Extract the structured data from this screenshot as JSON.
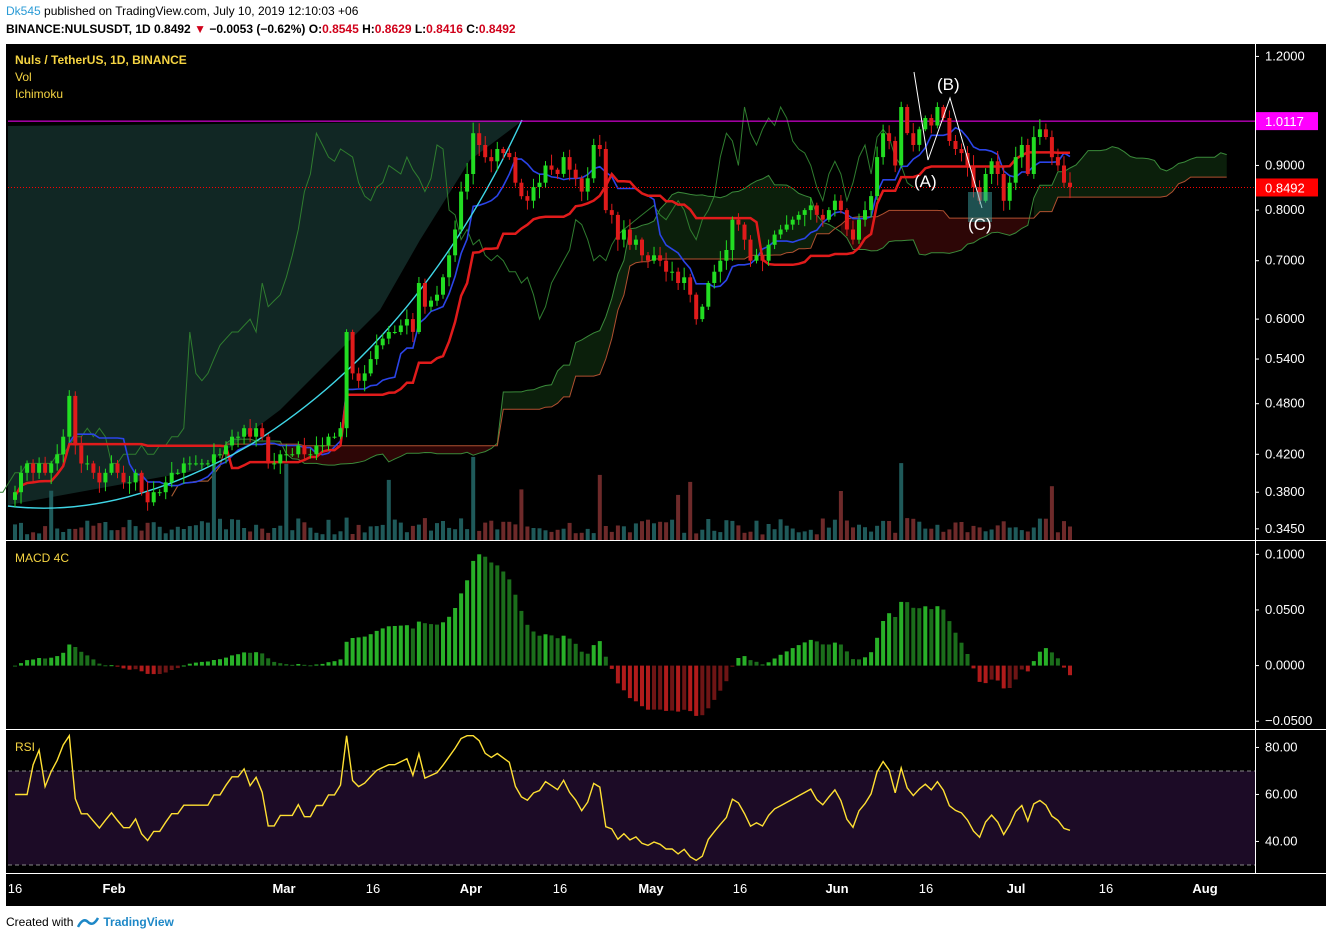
{
  "header": {
    "user": "Dk545",
    "published": "published on TradingView.com, July 10, 2019 12:10:03 +06",
    "symbol": "BINANCE:NULSUSDT, 1D",
    "last": "0.8492",
    "arrow": "▼",
    "change": "−0.0053 (−0.62%)",
    "o_label": "O:",
    "o": "0.8545",
    "h_label": "H:",
    "h": "0.8629",
    "l_label": "L:",
    "l": "0.8416",
    "c_label": "C:",
    "c": "0.8492"
  },
  "legend": {
    "title": "Nuls / TetherUS, 1D, BINANCE",
    "vol": "Vol",
    "ichimoku": "Ichimoku",
    "macd": "MACD 4C",
    "rsi": "RSI"
  },
  "annotations": {
    "a": "(A)",
    "b": "(B)",
    "c": "(C)"
  },
  "footer": {
    "created_with": "Created with",
    "brand": "TradingView"
  },
  "colors": {
    "bg": "#000000",
    "up": "#22dd22",
    "down": "#e01b1b",
    "magenta": "#ff00ff",
    "price_tag": "#ff0000",
    "axis_text": "#ffffff",
    "rsi_line": "#ffe033",
    "rsi_band": "#1c0b26",
    "tenkan": "#2b44e8",
    "kijun": "#e01b1b",
    "curve": "#3fd6e6"
  },
  "chart_data": [
    {
      "type": "candlestick",
      "title": "Nuls / TetherUS, 1D, BINANCE",
      "x_ticks": [
        "16",
        "Feb",
        "Mar",
        "16",
        "Apr",
        "16",
        "May",
        "16",
        "Jun",
        "16",
        "Jul",
        "16",
        "Aug"
      ],
      "y_ticks": [
        "1.2000",
        "0.9000",
        "0.8000",
        "0.7000",
        "0.6000",
        "0.5400",
        "0.4800",
        "0.4200",
        "0.3800",
        "0.3450"
      ],
      "scale": "log",
      "ylim": [
        0.335,
        1.24
      ],
      "horizontal_line": 1.0117,
      "horizontal_line_label": "1.0117",
      "last_price": 0.8492,
      "last_price_label": "0.8492",
      "closes": [
        0.38,
        0.4,
        0.41,
        0.4,
        0.41,
        0.4,
        0.41,
        0.42,
        0.44,
        0.49,
        0.43,
        0.41,
        0.41,
        0.4,
        0.39,
        0.4,
        0.41,
        0.4,
        0.39,
        0.39,
        0.4,
        0.38,
        0.37,
        0.38,
        0.38,
        0.39,
        0.4,
        0.4,
        0.41,
        0.41,
        0.41,
        0.41,
        0.41,
        0.42,
        0.42,
        0.43,
        0.44,
        0.44,
        0.45,
        0.44,
        0.45,
        0.44,
        0.41,
        0.41,
        0.42,
        0.42,
        0.42,
        0.43,
        0.42,
        0.42,
        0.43,
        0.43,
        0.44,
        0.44,
        0.45,
        0.58,
        0.52,
        0.51,
        0.52,
        0.54,
        0.56,
        0.57,
        0.58,
        0.58,
        0.59,
        0.6,
        0.58,
        0.66,
        0.62,
        0.63,
        0.64,
        0.67,
        0.71,
        0.76,
        0.84,
        0.88,
        0.98,
        0.95,
        0.92,
        0.91,
        0.94,
        0.93,
        0.92,
        0.86,
        0.83,
        0.82,
        0.85,
        0.86,
        0.9,
        0.89,
        0.88,
        0.92,
        0.89,
        0.87,
        0.84,
        0.87,
        0.95,
        0.94,
        0.8,
        0.79,
        0.74,
        0.76,
        0.73,
        0.74,
        0.71,
        0.7,
        0.71,
        0.7,
        0.68,
        0.68,
        0.66,
        0.67,
        0.64,
        0.6,
        0.62,
        0.66,
        0.68,
        0.7,
        0.72,
        0.78,
        0.77,
        0.74,
        0.7,
        0.71,
        0.7,
        0.73,
        0.75,
        0.76,
        0.77,
        0.78,
        0.79,
        0.8,
        0.81,
        0.79,
        0.78,
        0.8,
        0.82,
        0.8,
        0.76,
        0.74,
        0.78,
        0.8,
        0.83,
        0.92,
        0.98,
        0.96,
        0.9,
        1.05,
        0.98,
        0.95,
        0.99,
        1.02,
        1.0,
        1.05,
        1.02,
        0.96,
        0.94,
        0.93,
        0.9,
        0.85,
        0.82,
        0.88,
        0.91,
        0.88,
        0.82,
        0.86,
        0.92,
        0.95,
        0.88,
        0.97,
        0.99,
        0.97,
        0.92,
        0.9,
        0.86,
        0.85
      ],
      "overlays": [
        "Ichimoku (tenkan, kijun, span A, span B, cloud)",
        "Volume",
        "Cup curve",
        "Elliott correction (A)(B)(C)"
      ]
    },
    {
      "type": "bar",
      "title": "MACD 4C",
      "y_ticks": [
        "0.1000",
        "0.0500",
        "0.0000",
        "−0.0500"
      ],
      "ylim": [
        -0.057,
        0.112
      ]
    },
    {
      "type": "line",
      "title": "RSI",
      "y_ticks": [
        "80.00",
        "60.00",
        "40.00"
      ],
      "ylim": [
        27,
        87
      ],
      "band": [
        30,
        70
      ]
    }
  ]
}
